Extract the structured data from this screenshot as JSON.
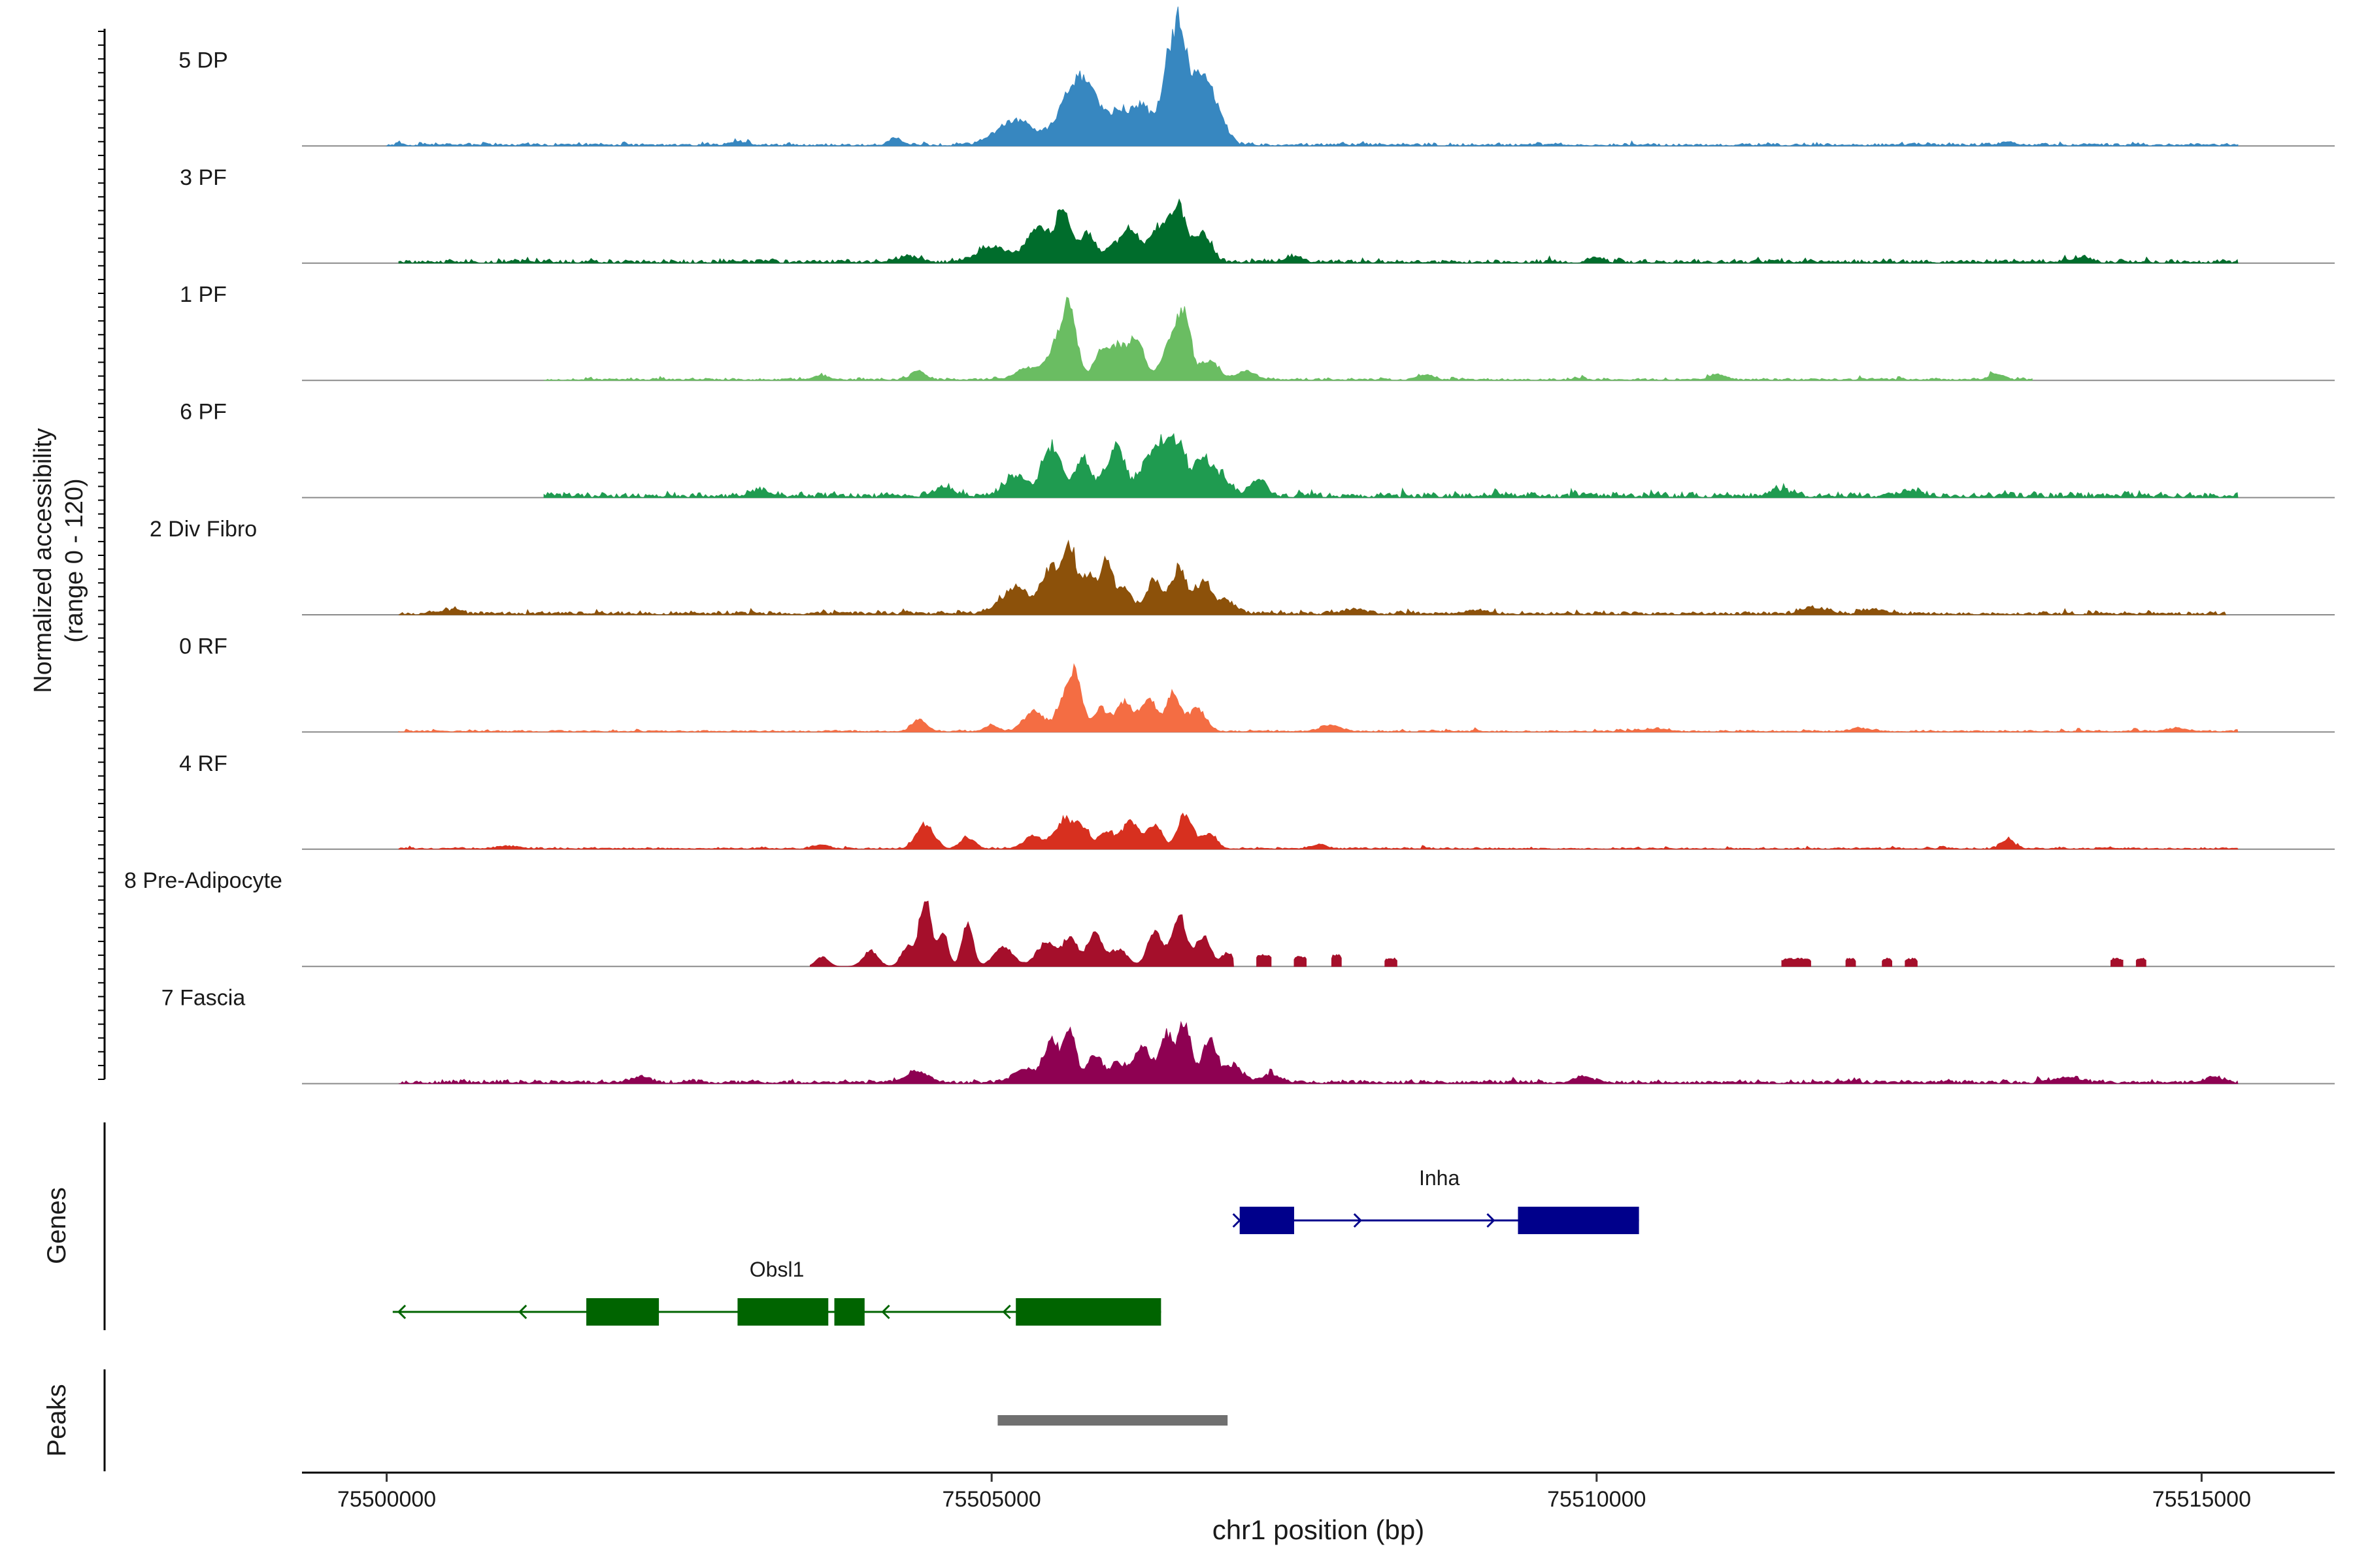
{
  "chart_data": {
    "type": "area",
    "title": "",
    "ylabel_line1": "Normalized accessibility",
    "ylabel_line2": "(range 0 - 120)",
    "xlabel": "chr1 position (bp)",
    "xlim": [
      75499300,
      75516100
    ],
    "ylim": [
      0,
      120
    ],
    "x_ticks": [
      75500000,
      75505000,
      75510000,
      75515000
    ],
    "x_tick_labels": [
      "75500000",
      "75505000",
      "75510000",
      "75515000"
    ],
    "tracks": [
      {
        "name": "5 DP",
        "color": "#3787c0",
        "region": [
          75500000,
          75515300
        ],
        "base": 2,
        "noise": 2.5,
        "seed": 11,
        "extra_bumps": [
          [
            75513400,
            4,
            60
          ],
          [
            75502900,
            4,
            60
          ]
        ],
        "peaks": [
          [
            75504200,
            7,
            50
          ],
          [
            75505200,
            26,
            150
          ],
          [
            75505650,
            46,
            110
          ],
          [
            75505800,
            48,
            100
          ],
          [
            75506050,
            34,
            90
          ],
          [
            75506250,
            38,
            80
          ],
          [
            75506450,
            70,
            60
          ],
          [
            75506550,
            98,
            55
          ],
          [
            75506700,
            64,
            90
          ],
          [
            75506850,
            32,
            80
          ]
        ]
      },
      {
        "name": "3 PF",
        "color": "#006d2c",
        "region": [
          75500100,
          75515300
        ],
        "base": 3,
        "noise": 3,
        "seed": 23,
        "extra_bumps": [
          [
            75504300,
            6,
            80
          ],
          [
            75510000,
            5,
            60
          ],
          [
            75514000,
            5,
            70
          ],
          [
            75507500,
            6,
            70
          ]
        ],
        "peaks": [
          [
            75505000,
            16,
            120
          ],
          [
            75505400,
            34,
            110
          ],
          [
            75505600,
            46,
            60
          ],
          [
            75505800,
            30,
            60
          ],
          [
            75506000,
            16,
            60
          ],
          [
            75506150,
            32,
            70
          ],
          [
            75506400,
            38,
            90
          ],
          [
            75506550,
            48,
            60
          ],
          [
            75506750,
            30,
            70
          ]
        ]
      },
      {
        "name": "1 PF",
        "color": "#6abd62",
        "region": [
          75501300,
          75513600
        ],
        "base": 1.5,
        "noise": 2.5,
        "seed": 37,
        "extra_bumps": [
          [
            75504400,
            8,
            60
          ],
          [
            75503600,
            4,
            60
          ],
          [
            75508600,
            5,
            60
          ],
          [
            75511000,
            5,
            70
          ],
          [
            75513300,
            6,
            60
          ]
        ],
        "peaks": [
          [
            75505300,
            12,
            100
          ],
          [
            75505550,
            38,
            80
          ],
          [
            75505650,
            58,
            60
          ],
          [
            75505900,
            28,
            60
          ],
          [
            75506050,
            34,
            70
          ],
          [
            75506200,
            40,
            60
          ],
          [
            75506500,
            46,
            80
          ],
          [
            75506600,
            50,
            50
          ],
          [
            75506800,
            20,
            70
          ],
          [
            75507100,
            8,
            80
          ]
        ]
      },
      {
        "name": "6 PF",
        "color": "#1f9b50",
        "region": [
          75501300,
          75515300
        ],
        "base": 4,
        "noise": 4.5,
        "seed": 41,
        "extra_bumps": [
          [
            75504600,
            8,
            80
          ],
          [
            75507200,
            16,
            70
          ],
          [
            75511500,
            6,
            90
          ],
          [
            75512600,
            6,
            80
          ],
          [
            75503100,
            6,
            80
          ]
        ],
        "peaks": [
          [
            75505200,
            22,
            90
          ],
          [
            75505500,
            50,
            80
          ],
          [
            75505750,
            40,
            60
          ],
          [
            75505950,
            22,
            60
          ],
          [
            75506050,
            44,
            60
          ],
          [
            75506250,
            26,
            60
          ],
          [
            75506400,
            52,
            70
          ],
          [
            75506550,
            50,
            70
          ],
          [
            75506750,
            40,
            60
          ],
          [
            75506900,
            22,
            60
          ]
        ]
      },
      {
        "name": "2 Div Fibro",
        "color": "#8c510a",
        "region": [
          75500100,
          75515200
        ],
        "base": 2.5,
        "noise": 3.2,
        "seed": 53,
        "extra_bumps": [
          [
            75500500,
            4,
            80
          ],
          [
            75509000,
            4,
            80
          ],
          [
            75511800,
            6,
            100
          ],
          [
            75512300,
            5,
            80
          ],
          [
            75508000,
            5,
            90
          ]
        ],
        "peaks": [
          [
            75505200,
            26,
            120
          ],
          [
            75505500,
            46,
            80
          ],
          [
            75505650,
            62,
            50
          ],
          [
            75505800,
            40,
            60
          ],
          [
            75505950,
            56,
            50
          ],
          [
            75506100,
            26,
            60
          ],
          [
            75506350,
            34,
            70
          ],
          [
            75506550,
            48,
            60
          ],
          [
            75506750,
            34,
            70
          ],
          [
            75506950,
            12,
            80
          ]
        ]
      },
      {
        "name": "0 RF",
        "color": "#f46d43",
        "region": [
          75500100,
          75515300
        ],
        "base": 1,
        "noise": 2,
        "seed": 61,
        "extra_bumps": [
          [
            75504400,
            12,
            60
          ],
          [
            75505000,
            6,
            60
          ],
          [
            75507800,
            6,
            80
          ],
          [
            75510500,
            3,
            90
          ],
          [
            75514800,
            3,
            90
          ],
          [
            75512200,
            3,
            90
          ]
        ],
        "peaks": [
          [
            75505350,
            22,
            80
          ],
          [
            75505600,
            36,
            60
          ],
          [
            75505700,
            56,
            50
          ],
          [
            75505900,
            24,
            60
          ],
          [
            75506100,
            30,
            70
          ],
          [
            75506300,
            34,
            60
          ],
          [
            75506500,
            40,
            60
          ],
          [
            75506700,
            24,
            70
          ]
        ]
      },
      {
        "name": "4 RF",
        "color": "#d7301f",
        "region": [
          75500100,
          75515300
        ],
        "base": 1,
        "noise": 2,
        "seed": 71,
        "extra_bumps": [
          [
            75504450,
            26,
            70
          ],
          [
            75504800,
            12,
            60
          ],
          [
            75503600,
            4,
            60
          ],
          [
            75507700,
            4,
            70
          ],
          [
            75513400,
            10,
            50
          ],
          [
            75501000,
            3,
            80
          ]
        ],
        "peaks": [
          [
            75505350,
            12,
            80
          ],
          [
            75505600,
            30,
            70
          ],
          [
            75505750,
            22,
            60
          ],
          [
            75505950,
            18,
            60
          ],
          [
            75506150,
            28,
            70
          ],
          [
            75506350,
            24,
            60
          ],
          [
            75506600,
            36,
            60
          ],
          [
            75506800,
            16,
            60
          ]
        ]
      },
      {
        "name": "8 Pre-Adipocyte",
        "color": "#a50f2b",
        "region": [
          75503500,
          75507000
        ],
        "base": 0,
        "noise": 0,
        "seed": 83,
        "extra_bumps": [],
        "peaks": [
          [
            75503600,
            10,
            50
          ],
          [
            75504000,
            16,
            60
          ],
          [
            75504300,
            20,
            50
          ],
          [
            75504450,
            70,
            50
          ],
          [
            75504600,
            34,
            40
          ],
          [
            75504800,
            44,
            45
          ],
          [
            75505100,
            20,
            80
          ],
          [
            75505450,
            24,
            80
          ],
          [
            75505650,
            30,
            60
          ],
          [
            75505850,
            34,
            60
          ],
          [
            75506050,
            18,
            70
          ],
          [
            75506350,
            38,
            60
          ],
          [
            75506550,
            52,
            60
          ],
          [
            75506750,
            32,
            60
          ],
          [
            75506950,
            14,
            50
          ]
        ],
        "islands": [
          [
            75507250,
            12,
            60
          ],
          [
            75507550,
            10,
            50
          ],
          [
            75507850,
            12,
            40
          ],
          [
            75508300,
            8,
            50
          ],
          [
            75511650,
            8,
            120
          ],
          [
            75512100,
            8,
            40
          ],
          [
            75512400,
            8,
            40
          ],
          [
            75512600,
            8,
            50
          ],
          [
            75514300,
            8,
            50
          ],
          [
            75514500,
            8,
            40
          ]
        ]
      },
      {
        "name": "7 Fascia",
        "color": "#8e0152",
        "region": [
          75500100,
          75515300
        ],
        "base": 2.5,
        "noise": 3.5,
        "seed": 97,
        "extra_bumps": [
          [
            75504400,
            10,
            90
          ],
          [
            75502100,
            6,
            80
          ],
          [
            75507300,
            8,
            80
          ],
          [
            75509900,
            6,
            80
          ],
          [
            75513900,
            6,
            90
          ],
          [
            75515100,
            6,
            70
          ]
        ],
        "peaks": [
          [
            75505300,
            14,
            100
          ],
          [
            75505500,
            40,
            60
          ],
          [
            75505650,
            52,
            50
          ],
          [
            75505850,
            30,
            60
          ],
          [
            75506050,
            20,
            70
          ],
          [
            75506250,
            36,
            70
          ],
          [
            75506450,
            48,
            60
          ],
          [
            75506600,
            60,
            50
          ],
          [
            75506800,
            44,
            60
          ],
          [
            75507000,
            18,
            70
          ]
        ]
      }
    ],
    "genes": {
      "label": "Genes",
      "items": [
        {
          "name": "Inha",
          "strand": "+",
          "color": "#00008b",
          "start": 75507050,
          "end": 75510350,
          "exons": [
            [
              75507050,
              75507500
            ],
            [
              75509350,
              75510350
            ]
          ],
          "arrows": [
            75507050,
            75508050,
            75509150
          ]
        },
        {
          "name": "Obsl1",
          "strand": "-",
          "color": "#006400",
          "start": 75500050,
          "end": 75506400,
          "exons": [
            [
              75501650,
              75502250
            ],
            [
              75502900,
              75503650
            ],
            [
              75503700,
              75503950
            ],
            [
              75505200,
              75506400
            ]
          ],
          "arrows": [
            75500100,
            75501100,
            75504100,
            75505100
          ]
        }
      ]
    },
    "peaks_track": {
      "label": "Peaks",
      "color": "#707070",
      "regions": [
        [
          75505050,
          75506950
        ]
      ]
    }
  }
}
